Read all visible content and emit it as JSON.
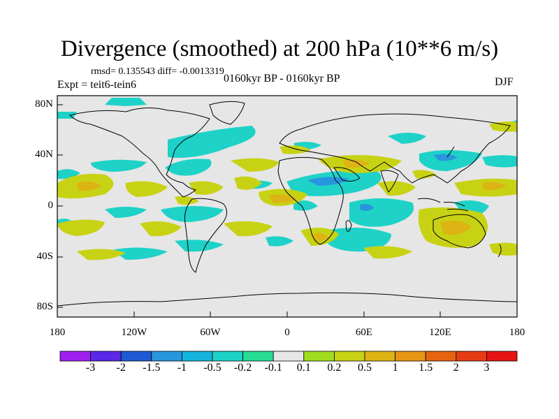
{
  "title": "Divergence (smoothed) at 200 hPa (10**6 m/s)",
  "stats": "rmsd= 0.135543 diff= -0.0013319",
  "expt": "Expt = teit6-tein6",
  "period": "0160kyr BP - 0160kyr BP",
  "season": "DJF",
  "lat_labels": [
    "80N",
    "40N",
    "0",
    "40S",
    "80S"
  ],
  "lon_labels": [
    "180",
    "120W",
    "60W",
    "0",
    "60E",
    "120E",
    "180"
  ],
  "colorbar": {
    "colors": [
      "#a020f0",
      "#5a28e6",
      "#1e5ad2",
      "#2896dc",
      "#14b4dc",
      "#1ed2c8",
      "#28dc96",
      "#e6e6e6",
      "#a0dc1e",
      "#c8d214",
      "#dcb414",
      "#e69614",
      "#e6640f",
      "#e63c14",
      "#e61414"
    ],
    "labels": [
      "-3",
      "-2",
      "-1.5",
      "-1",
      "-0.5",
      "-0.2",
      "-0.1",
      "0.1",
      "0.2",
      "0.5",
      "1",
      "1.5",
      "2",
      "3"
    ]
  },
  "map": {
    "background": "#e6e6e6",
    "positive_color": "#c8d214",
    "positive_strong_color": "#dcb414",
    "negative_color": "#1ed2c8",
    "negative_strong_color": "#2896dc"
  }
}
